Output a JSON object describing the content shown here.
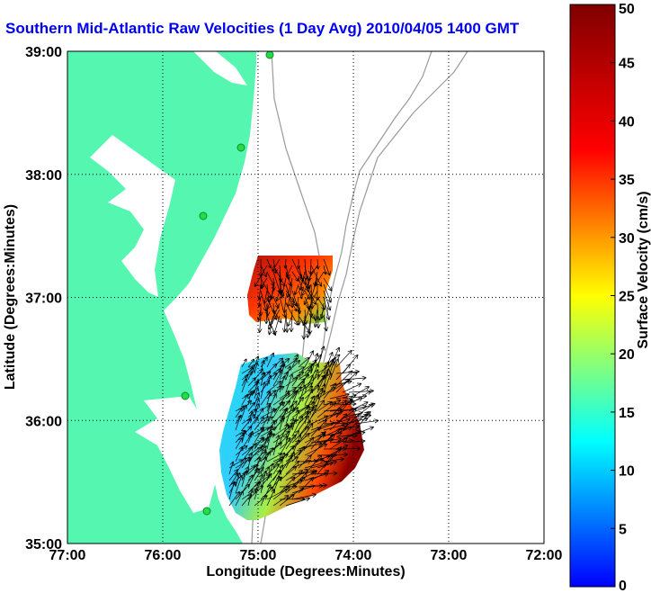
{
  "title": "Southern Mid-Atlantic Raw Velocities (1 Day Avg) 2010/04/05 1400 GMT",
  "map": {
    "xlabel": "Longitude (Degrees:Minutes)",
    "ylabel": "Latitude (Degrees:Minutes)",
    "x_ticks": [
      "77:00",
      "76:00",
      "75:00",
      "74:00",
      "73:00",
      "72:00"
    ],
    "y_ticks": [
      "39:00",
      "38:00",
      "37:00",
      "36:00",
      "35:00"
    ],
    "lon_range": [
      -77,
      -72
    ],
    "lat_range": [
      35,
      39
    ],
    "grid": true,
    "land_color": "#55f7b0",
    "bathymetry_color": "#9a9a9a",
    "station_color": "#22dd44"
  },
  "colorbar": {
    "label": "Surface Velocity (cm/s)",
    "ticks": [
      "0",
      "5",
      "10",
      "15",
      "20",
      "25",
      "30",
      "35",
      "40",
      "45",
      "50"
    ],
    "range": [
      0,
      50
    ],
    "colormap": "jet"
  }
}
